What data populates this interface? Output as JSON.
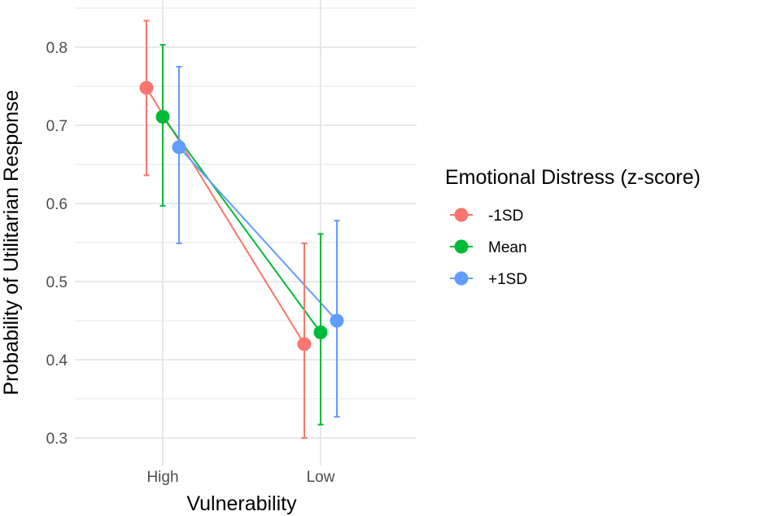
{
  "chart_data": {
    "type": "line",
    "title": "",
    "xlabel": "Vulnerability",
    "ylabel": "Probability of Utilitarian Response",
    "categories": [
      "High",
      "Low"
    ],
    "yticks": [
      0.3,
      0.4,
      0.5,
      0.6,
      0.7,
      0.8
    ],
    "ytick_labels": [
      "0.3",
      "0.4",
      "0.5",
      "0.6",
      "0.7",
      "0.8"
    ],
    "ylim": [
      0.29,
      0.855
    ],
    "grid": true,
    "legend_position": "right",
    "legend_title": "Emotional Distress (z-score)",
    "error_bars": true,
    "series": [
      {
        "name": "-1SD",
        "color": "#F8766D",
        "values": [
          0.748,
          0.42
        ],
        "ci_low": [
          0.636,
          0.3
        ],
        "ci_high": [
          0.834,
          0.549
        ]
      },
      {
        "name": "Mean",
        "color": "#00BA38",
        "values": [
          0.711,
          0.435
        ],
        "ci_low": [
          0.597,
          0.317
        ],
        "ci_high": [
          0.803,
          0.561
        ]
      },
      {
        "name": "+1SD",
        "color": "#619CFF",
        "values": [
          0.672,
          0.45
        ],
        "ci_low": [
          0.549,
          0.327
        ],
        "ci_high": [
          0.775,
          0.578
        ]
      }
    ]
  }
}
